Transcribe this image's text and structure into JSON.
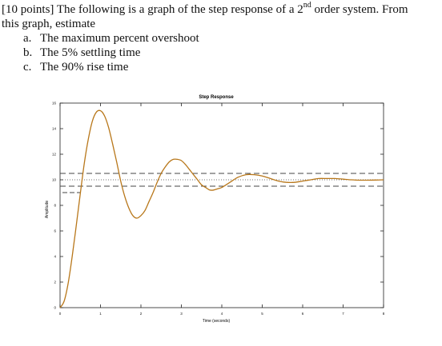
{
  "question": {
    "line1_before_sup": "[10 points] The following is a graph of the step response of a 2",
    "line1_sup": "nd",
    "line1_after_sup": " order system. From",
    "line2": "this graph, estimate",
    "items": [
      {
        "letter": "a.",
        "text": "The maximum percent overshoot"
      },
      {
        "letter": "b.",
        "text": "The 5% settling time"
      },
      {
        "letter": "c.",
        "text": "The 90% rise time"
      }
    ]
  },
  "colors": {
    "curve": "#b8771a",
    "axes": "#222222",
    "bands": "#444444",
    "text": "#111111"
  },
  "chart_data": {
    "type": "line",
    "title": "Step Response",
    "xlabel": "Time (seconds)",
    "ylabel": "Amplitude",
    "xlim": [
      0,
      8
    ],
    "ylim": [
      0,
      16
    ],
    "xticks": [
      0,
      1,
      2,
      3,
      4,
      5,
      6,
      7,
      8
    ],
    "yticks": [
      0,
      2,
      4,
      6,
      8,
      10,
      12,
      14,
      16
    ],
    "final_value": 10,
    "settling_band": [
      9.5,
      10.5
    ],
    "dotted_reference": 10,
    "rise_marker_level": 9,
    "series": [
      {
        "x": [
          0,
          0.1,
          0.2,
          0.3,
          0.4,
          0.5,
          0.6,
          0.7,
          0.8,
          0.9,
          1.0,
          1.1,
          1.2,
          1.3,
          1.4,
          1.5,
          1.6,
          1.7,
          1.8,
          1.9,
          2.0,
          2.1,
          2.2,
          2.3,
          2.4,
          2.5,
          2.6,
          2.7,
          2.8,
          2.9,
          3.0,
          3.1,
          3.2,
          3.3,
          3.4,
          3.5,
          3.6,
          3.7,
          3.8,
          3.9,
          4.0,
          4.2,
          4.4,
          4.6,
          4.8,
          5.0,
          5.2,
          5.4,
          5.6,
          5.8,
          6.0,
          6.2,
          6.4,
          6.6,
          6.8,
          7.0,
          7.2,
          7.4,
          7.6,
          7.8,
          8.0
        ],
        "y": [
          0,
          0.5,
          1.9,
          4.0,
          6.4,
          8.9,
          11.3,
          13.2,
          14.6,
          15.3,
          15.4,
          15.0,
          14.1,
          12.8,
          11.4,
          9.9,
          8.7,
          7.8,
          7.2,
          7.0,
          7.2,
          7.6,
          8.3,
          9.0,
          9.8,
          10.5,
          11.0,
          11.4,
          11.6,
          11.6,
          11.5,
          11.2,
          10.8,
          10.4,
          10.0,
          9.6,
          9.4,
          9.2,
          9.2,
          9.3,
          9.4,
          9.8,
          10.2,
          10.4,
          10.4,
          10.3,
          10.1,
          9.9,
          9.8,
          9.8,
          9.9,
          10.0,
          10.1,
          10.1,
          10.1,
          10.05,
          10.0,
          9.97,
          9.97,
          9.98,
          10.0
        ]
      }
    ]
  }
}
